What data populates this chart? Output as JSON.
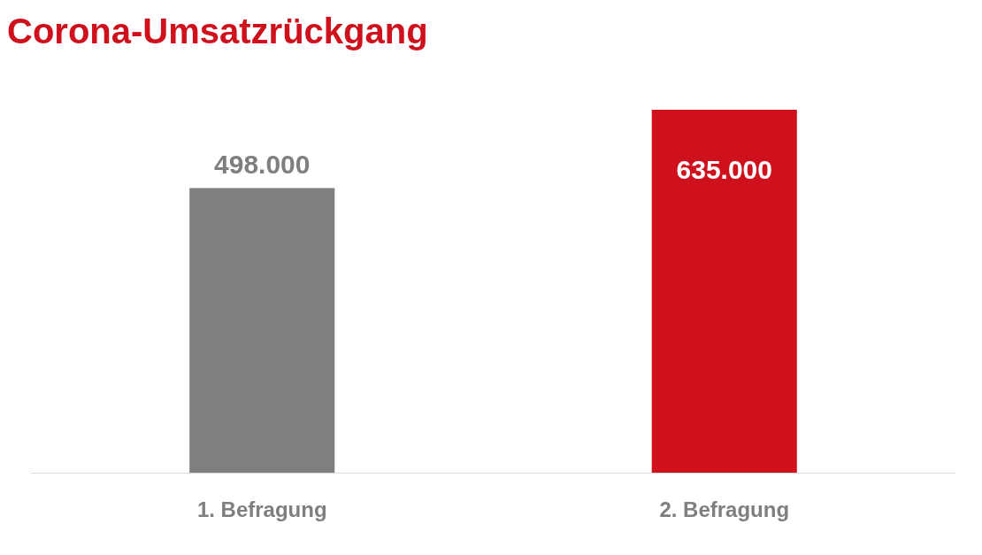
{
  "chart_data": {
    "type": "bar",
    "title": "Corona-Umsatzrückgang",
    "categories": [
      "1. Befragung",
      "2. Befragung"
    ],
    "values": [
      498000,
      635000
    ],
    "colors": [
      "#7f7f7f",
      "#ce111c"
    ],
    "value_labels": [
      "498.000",
      "635.000"
    ]
  }
}
